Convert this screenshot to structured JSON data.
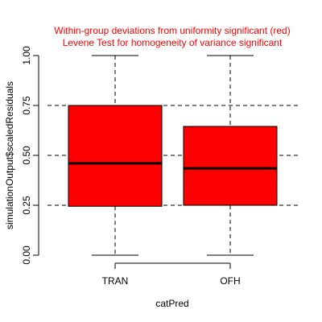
{
  "chart_data": {
    "type": "boxplot",
    "title_lines": [
      "Within-group deviations from uniformity significant (red)",
      "Levene Test for homogeneity of variance significant"
    ],
    "xlabel": "catPred",
    "ylabel": "simulationOutput$scaledResiduals",
    "ylim": [
      0,
      1
    ],
    "y_ticks": [
      0,
      0.25,
      0.5,
      0.75,
      1
    ],
    "y_tick_labels": [
      "0.00",
      "0.25",
      "0.50",
      "0.75",
      "1.00"
    ],
    "reference_lines": [
      0.25,
      0.5,
      0.75
    ],
    "categories": [
      "TRAN",
      "OFH"
    ],
    "boxes": [
      {
        "category": "TRAN",
        "min": 0.0,
        "q1": 0.245,
        "median": 0.46,
        "q3": 0.75,
        "max": 1.0
      },
      {
        "category": "OFH",
        "min": 0.0,
        "q1": 0.25,
        "median": 0.435,
        "q3": 0.645,
        "max": 1.0
      }
    ],
    "colors": {
      "box_fill": "#ff0000",
      "title": "#ff0000",
      "lines": "#000000"
    }
  }
}
